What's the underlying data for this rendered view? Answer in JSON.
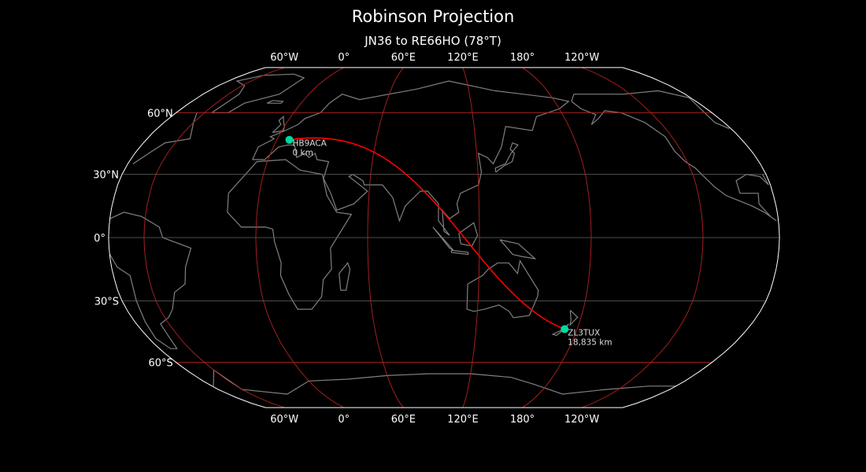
{
  "title": "Robinson Projection",
  "subtitle": "JN36 to RE66HO (78°T)",
  "map": {
    "projection": "robinson",
    "central_longitude": 101,
    "background": "#000000",
    "coastline_color": "#808080",
    "major_grid_color": "#b22222",
    "minor_grid_color": "#666666",
    "border_color": "#ffffff",
    "path_color": "#ff0000",
    "station_color": "#00d9a0",
    "meridians": [
      -60,
      0,
      60,
      120,
      180,
      240
    ],
    "meridian_labels": [
      "60°W",
      "0°",
      "60°E",
      "120°E",
      "180°",
      "120°W"
    ],
    "parallels": [
      {
        "lat": 60,
        "label": "60°N",
        "major": true
      },
      {
        "lat": 30,
        "label": "30°N",
        "major": false
      },
      {
        "lat": 0,
        "label": "0°",
        "major": false
      },
      {
        "lat": -30,
        "label": "30°S",
        "major": false
      },
      {
        "lat": -60,
        "label": "60°S",
        "major": true
      }
    ]
  },
  "stations": [
    {
      "call": "HB9ACA",
      "distance": "0 km",
      "lat": 46.5,
      "lon": 7.5
    },
    {
      "call": "ZL3TUX",
      "distance": "18,835 km",
      "lat": -43.5,
      "lon": 172.6
    }
  ]
}
